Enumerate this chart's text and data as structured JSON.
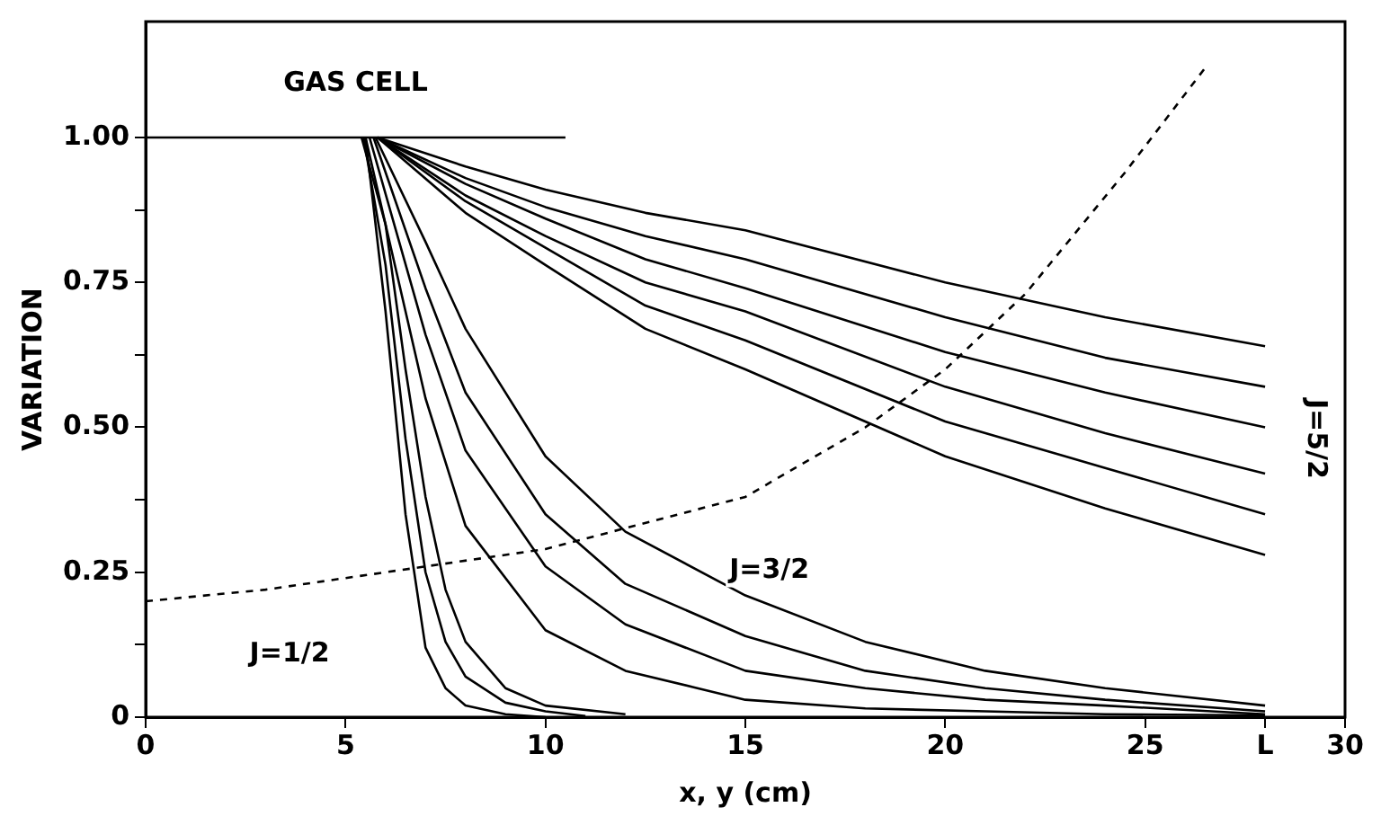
{
  "chart_data": {
    "type": "line",
    "xlabel": "x, y (cm)",
    "ylabel": "VARIATION",
    "xlim": [
      0,
      30
    ],
    "ylim": [
      0,
      1.2
    ],
    "xticks": [
      0,
      5,
      10,
      15,
      20,
      25,
      {
        "value": 28,
        "label": "L"
      },
      30
    ],
    "yticks": [
      {
        "value": 0,
        "label": "0"
      },
      {
        "value": 0.125,
        "label": null
      },
      0.25,
      {
        "value": 0.375,
        "label": null
      },
      {
        "value": 0.5,
        "label": "0.50"
      },
      {
        "value": 0.625,
        "label": null
      },
      0.75,
      {
        "value": 0.875,
        "label": null
      },
      {
        "value": 1,
        "label": "1.00"
      }
    ],
    "grid": false,
    "legend": false,
    "marker": "none",
    "line_style": "solid",
    "series": [
      {
        "color": "#000000",
        "x": [
          0,
          10.5
        ],
        "values": [
          1,
          1
        ]
      },
      {
        "color": "#000000",
        "x": [
          5.8,
          8,
          10,
          12.5,
          15,
          20,
          24,
          28
        ],
        "values": [
          1,
          0.95,
          0.91,
          0.87,
          0.84,
          0.75,
          0.69,
          0.64
        ]
      },
      {
        "color": "#000000",
        "x": [
          5.8,
          8,
          10,
          12.5,
          15,
          20,
          24,
          28
        ],
        "values": [
          1,
          0.93,
          0.88,
          0.83,
          0.79,
          0.69,
          0.62,
          0.57
        ]
      },
      {
        "color": "#000000",
        "x": [
          5.8,
          8,
          10,
          12.5,
          15,
          20,
          24,
          28
        ],
        "values": [
          1,
          0.92,
          0.86,
          0.79,
          0.74,
          0.63,
          0.56,
          0.5
        ]
      },
      {
        "color": "#000000",
        "x": [
          5.8,
          8,
          10,
          12.5,
          15,
          20,
          24,
          28
        ],
        "values": [
          1,
          0.9,
          0.83,
          0.75,
          0.7,
          0.57,
          0.49,
          0.42
        ]
      },
      {
        "color": "#000000",
        "x": [
          5.8,
          8,
          10,
          12.5,
          15,
          20,
          24,
          28
        ],
        "values": [
          1,
          0.89,
          0.81,
          0.71,
          0.65,
          0.51,
          0.43,
          0.35
        ]
      },
      {
        "color": "#000000",
        "x": [
          5.8,
          8,
          10,
          12.5,
          15,
          20,
          24,
          28
        ],
        "values": [
          1,
          0.87,
          0.78,
          0.67,
          0.6,
          0.45,
          0.36,
          0.28
        ]
      },
      {
        "color": "#000000",
        "x": [
          5.75,
          7,
          8,
          10,
          12,
          15,
          18,
          21,
          24,
          28
        ],
        "values": [
          1,
          0.82,
          0.67,
          0.45,
          0.32,
          0.21,
          0.13,
          0.08,
          0.05,
          0.02
        ]
      },
      {
        "color": "#000000",
        "x": [
          5.7,
          7,
          8,
          10,
          12,
          15,
          18,
          21,
          24,
          28
        ],
        "values": [
          1,
          0.74,
          0.56,
          0.35,
          0.23,
          0.14,
          0.08,
          0.05,
          0.03,
          0.01
        ]
      },
      {
        "color": "#000000",
        "x": [
          5.6,
          7,
          8,
          10,
          12,
          15,
          18,
          21,
          24,
          28
        ],
        "values": [
          1,
          0.66,
          0.46,
          0.26,
          0.16,
          0.08,
          0.05,
          0.03,
          0.02,
          0.005
        ]
      },
      {
        "color": "#000000",
        "x": [
          5.5,
          7,
          8,
          10,
          12,
          15,
          18,
          21,
          24,
          28
        ],
        "values": [
          1,
          0.55,
          0.33,
          0.15,
          0.08,
          0.03,
          0.015,
          0.01,
          0.005,
          0.003
        ]
      },
      {
        "color": "#000000",
        "x": [
          5.4,
          6,
          6.5,
          7,
          7.5,
          8,
          9,
          10,
          12
        ],
        "values": [
          1,
          0.85,
          0.6,
          0.38,
          0.22,
          0.13,
          0.05,
          0.02,
          0.005
        ]
      },
      {
        "color": "#000000",
        "x": [
          5.45,
          6,
          6.5,
          7,
          7.5,
          8,
          9,
          10,
          11
        ],
        "values": [
          1,
          0.78,
          0.48,
          0.25,
          0.13,
          0.07,
          0.025,
          0.01,
          0.002
        ]
      },
      {
        "color": "#000000",
        "x": [
          5.5,
          6,
          6.5,
          7,
          7.5,
          8,
          9,
          10
        ],
        "values": [
          1,
          0.7,
          0.35,
          0.12,
          0.05,
          0.02,
          0.005,
          0
        ]
      },
      {
        "color": "#000000",
        "line_style": "dashed",
        "x": [
          0,
          3,
          6,
          10,
          15,
          18,
          20,
          22,
          24.5,
          26.5
        ],
        "values": [
          0.2,
          0.22,
          0.25,
          0.29,
          0.38,
          0.5,
          0.6,
          0.73,
          0.94,
          1.12
        ]
      }
    ],
    "annotations": [
      "GAS CELL",
      "J=1/2",
      "J=3/2",
      "J=5/2"
    ]
  }
}
